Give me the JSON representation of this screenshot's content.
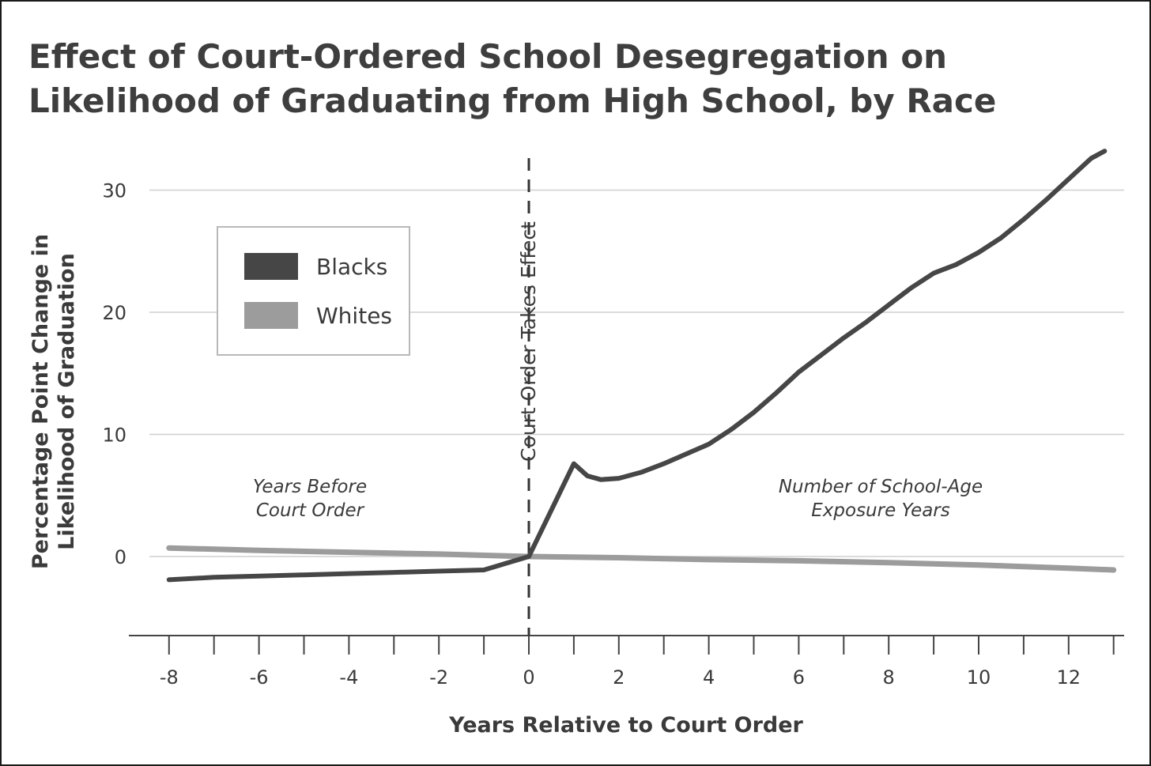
{
  "title_line1": "Effect of Court-Ordered School Desegregation on",
  "title_line2": "Likelihood of Graduating from High School, by Race",
  "chart_data": {
    "type": "line",
    "xlabel": "Years Relative to Court Order",
    "ylabel_line1": "Percentage Point Change in",
    "ylabel_line2": "Likelihood of Graduation",
    "xlim": [
      -8,
      13
    ],
    "ylim": [
      -6.5,
      33
    ],
    "xticks": [
      "-8",
      "-6",
      "-4",
      "-2",
      "0",
      "2",
      "4",
      "6",
      "8",
      "10",
      "12"
    ],
    "yticks": [
      "0",
      "10",
      "20",
      "30"
    ],
    "grid": true,
    "legend_position": "upper-left",
    "vertical_marker": {
      "x": 0,
      "label": "Court Order Takes Effect"
    },
    "annotations": {
      "before_line1": "Years Before",
      "before_line2": "Court Order",
      "after_line1": "Number of School-Age",
      "after_line2": "Exposure Years"
    },
    "series": [
      {
        "name": "Blacks",
        "color": "#464646",
        "x": [
          -8,
          -7,
          -6,
          -5,
          -4,
          -3,
          -2,
          -1,
          0,
          1,
          1.3,
          1.6,
          2,
          2.5,
          3,
          3.5,
          4,
          4.5,
          5,
          5.5,
          6,
          6.5,
          7,
          7.5,
          8,
          8.5,
          9,
          9.5,
          10,
          10.5,
          11,
          11.5,
          12,
          12.5,
          12.8
        ],
        "values": [
          -1.9,
          -1.7,
          -1.6,
          -1.5,
          -1.4,
          -1.3,
          -1.2,
          -1.1,
          0,
          7.6,
          6.6,
          6.3,
          6.4,
          6.9,
          7.6,
          8.4,
          9.2,
          10.4,
          11.8,
          13.4,
          15.1,
          16.5,
          17.9,
          19.2,
          20.6,
          22.0,
          23.2,
          23.9,
          24.9,
          26.1,
          27.6,
          29.2,
          30.9,
          32.6,
          33.2
        ]
      },
      {
        "name": "Whites",
        "color": "#9c9c9c",
        "x": [
          -8,
          -6,
          -4,
          -2,
          0,
          2,
          4,
          6,
          8,
          10,
          12,
          13
        ],
        "values": [
          0.7,
          0.5,
          0.35,
          0.2,
          0,
          -0.1,
          -0.25,
          -0.35,
          -0.5,
          -0.7,
          -0.95,
          -1.1
        ]
      }
    ]
  }
}
